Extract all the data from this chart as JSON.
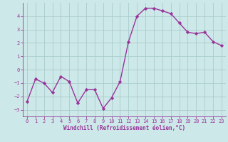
{
  "x": [
    0,
    1,
    2,
    3,
    4,
    5,
    6,
    7,
    8,
    9,
    10,
    11,
    12,
    13,
    14,
    15,
    16,
    17,
    18,
    19,
    20,
    21,
    22,
    23
  ],
  "y": [
    -2.4,
    -0.7,
    -1.0,
    -1.7,
    -0.5,
    -0.9,
    -2.5,
    -1.5,
    -1.5,
    -2.9,
    -2.1,
    -0.9,
    2.1,
    4.0,
    4.6,
    4.6,
    4.4,
    4.2,
    3.5,
    2.8,
    2.7,
    2.8,
    2.1,
    1.8
  ],
  "line_color": "#993399",
  "marker": "D",
  "marker_size": 2.2,
  "linewidth": 1.0,
  "bg_color": "#cce8e8",
  "grid_color": "#aacccc",
  "xlabel": "Windchill (Refroidissement éolien,°C)",
  "xlabel_fontsize": 5.5,
  "xlabel_color": "#993399",
  "tick_color": "#993399",
  "tick_fontsize": 5.0,
  "ylim": [
    -3.5,
    5.0
  ],
  "yticks": [
    -3,
    -2,
    -1,
    0,
    1,
    2,
    3,
    4
  ],
  "xticks": [
    0,
    1,
    2,
    3,
    4,
    5,
    6,
    7,
    8,
    9,
    10,
    11,
    12,
    13,
    14,
    15,
    16,
    17,
    18,
    19,
    20,
    21,
    22,
    23
  ],
  "spine_color": "#993399"
}
